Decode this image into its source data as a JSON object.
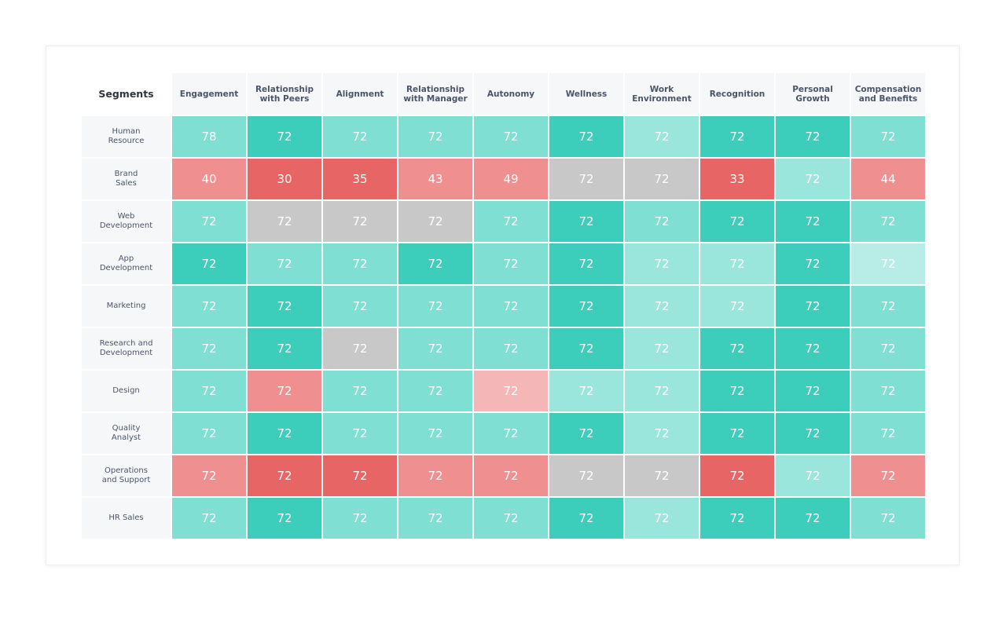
{
  "chart_data": {
    "type": "heatmap",
    "corner_label": "Segments",
    "columns": [
      "Engagement",
      "Relationship\nwith Peers",
      "Alignment",
      "Relationship\nwith Manager",
      "Autonomy",
      "Wellness",
      "Work\nEnvironment",
      "Recognition",
      "Personal\nGrowth",
      "Compensation\nand Benefits"
    ],
    "rows": [
      "Human\nResource",
      "Brand\nSales",
      "Web\nDevelopment",
      "App\nDevelopment",
      "Marketing",
      "Research and\nDevelopment",
      "Design",
      "Quality\nAnalyst",
      "Operations\nand Support",
      "HR Sales"
    ],
    "values": [
      [
        78,
        72,
        72,
        72,
        72,
        72,
        72,
        72,
        72,
        72
      ],
      [
        40,
        30,
        35,
        43,
        49,
        72,
        72,
        33,
        72,
        44
      ],
      [
        72,
        72,
        72,
        72,
        72,
        72,
        72,
        72,
        72,
        72
      ],
      [
        72,
        72,
        72,
        72,
        72,
        72,
        72,
        72,
        72,
        72
      ],
      [
        72,
        72,
        72,
        72,
        72,
        72,
        72,
        72,
        72,
        72
      ],
      [
        72,
        72,
        72,
        72,
        72,
        72,
        72,
        72,
        72,
        72
      ],
      [
        72,
        72,
        72,
        72,
        72,
        72,
        72,
        72,
        72,
        72
      ],
      [
        72,
        72,
        72,
        72,
        72,
        72,
        72,
        72,
        72,
        72
      ],
      [
        72,
        72,
        72,
        72,
        72,
        72,
        72,
        72,
        72,
        72
      ],
      [
        72,
        72,
        72,
        72,
        72,
        72,
        72,
        72,
        72,
        72
      ]
    ],
    "cell_colors": [
      [
        "#7fdfd2",
        "#3ccdbb",
        "#7fdfd2",
        "#7fdfd2",
        "#7fdfd2",
        "#3ccdbb",
        "#9be6dc",
        "#3ccdbb",
        "#3ccdbb",
        "#7fdfd2"
      ],
      [
        "#ef8f8f",
        "#e86565",
        "#e86565",
        "#ef8f8f",
        "#ef8f8f",
        "#c8c8c8",
        "#c8c8c8",
        "#e86565",
        "#9be6dc",
        "#ef8f8f"
      ],
      [
        "#7fdfd2",
        "#c8c8c8",
        "#c8c8c8",
        "#c8c8c8",
        "#7fdfd2",
        "#3ccdbb",
        "#7fdfd2",
        "#3ccdbb",
        "#3ccdbb",
        "#7fdfd2"
      ],
      [
        "#3ccdbb",
        "#7fdfd2",
        "#7fdfd2",
        "#3ccdbb",
        "#7fdfd2",
        "#3ccdbb",
        "#9be6dc",
        "#9be6dc",
        "#3ccdbb",
        "#b7ede6"
      ],
      [
        "#7fdfd2",
        "#3ccdbb",
        "#7fdfd2",
        "#7fdfd2",
        "#7fdfd2",
        "#3ccdbb",
        "#9be6dc",
        "#9be6dc",
        "#3ccdbb",
        "#7fdfd2"
      ],
      [
        "#7fdfd2",
        "#3ccdbb",
        "#c8c8c8",
        "#7fdfd2",
        "#7fdfd2",
        "#3ccdbb",
        "#9be6dc",
        "#3ccdbb",
        "#3ccdbb",
        "#7fdfd2"
      ],
      [
        "#7fdfd2",
        "#ef8f8f",
        "#7fdfd2",
        "#7fdfd2",
        "#f4b6b6",
        "#9be6dc",
        "#9be6dc",
        "#3ccdbb",
        "#3ccdbb",
        "#7fdfd2"
      ],
      [
        "#7fdfd2",
        "#3ccdbb",
        "#7fdfd2",
        "#7fdfd2",
        "#7fdfd2",
        "#3ccdbb",
        "#9be6dc",
        "#3ccdbb",
        "#3ccdbb",
        "#7fdfd2"
      ],
      [
        "#ef8f8f",
        "#e86565",
        "#e86565",
        "#ef8f8f",
        "#ef8f8f",
        "#c8c8c8",
        "#c8c8c8",
        "#e86565",
        "#9be6dc",
        "#ef8f8f"
      ],
      [
        "#7fdfd2",
        "#3ccdbb",
        "#7fdfd2",
        "#7fdfd2",
        "#7fdfd2",
        "#3ccdbb",
        "#9be6dc",
        "#3ccdbb",
        "#3ccdbb",
        "#7fdfd2"
      ]
    ]
  }
}
